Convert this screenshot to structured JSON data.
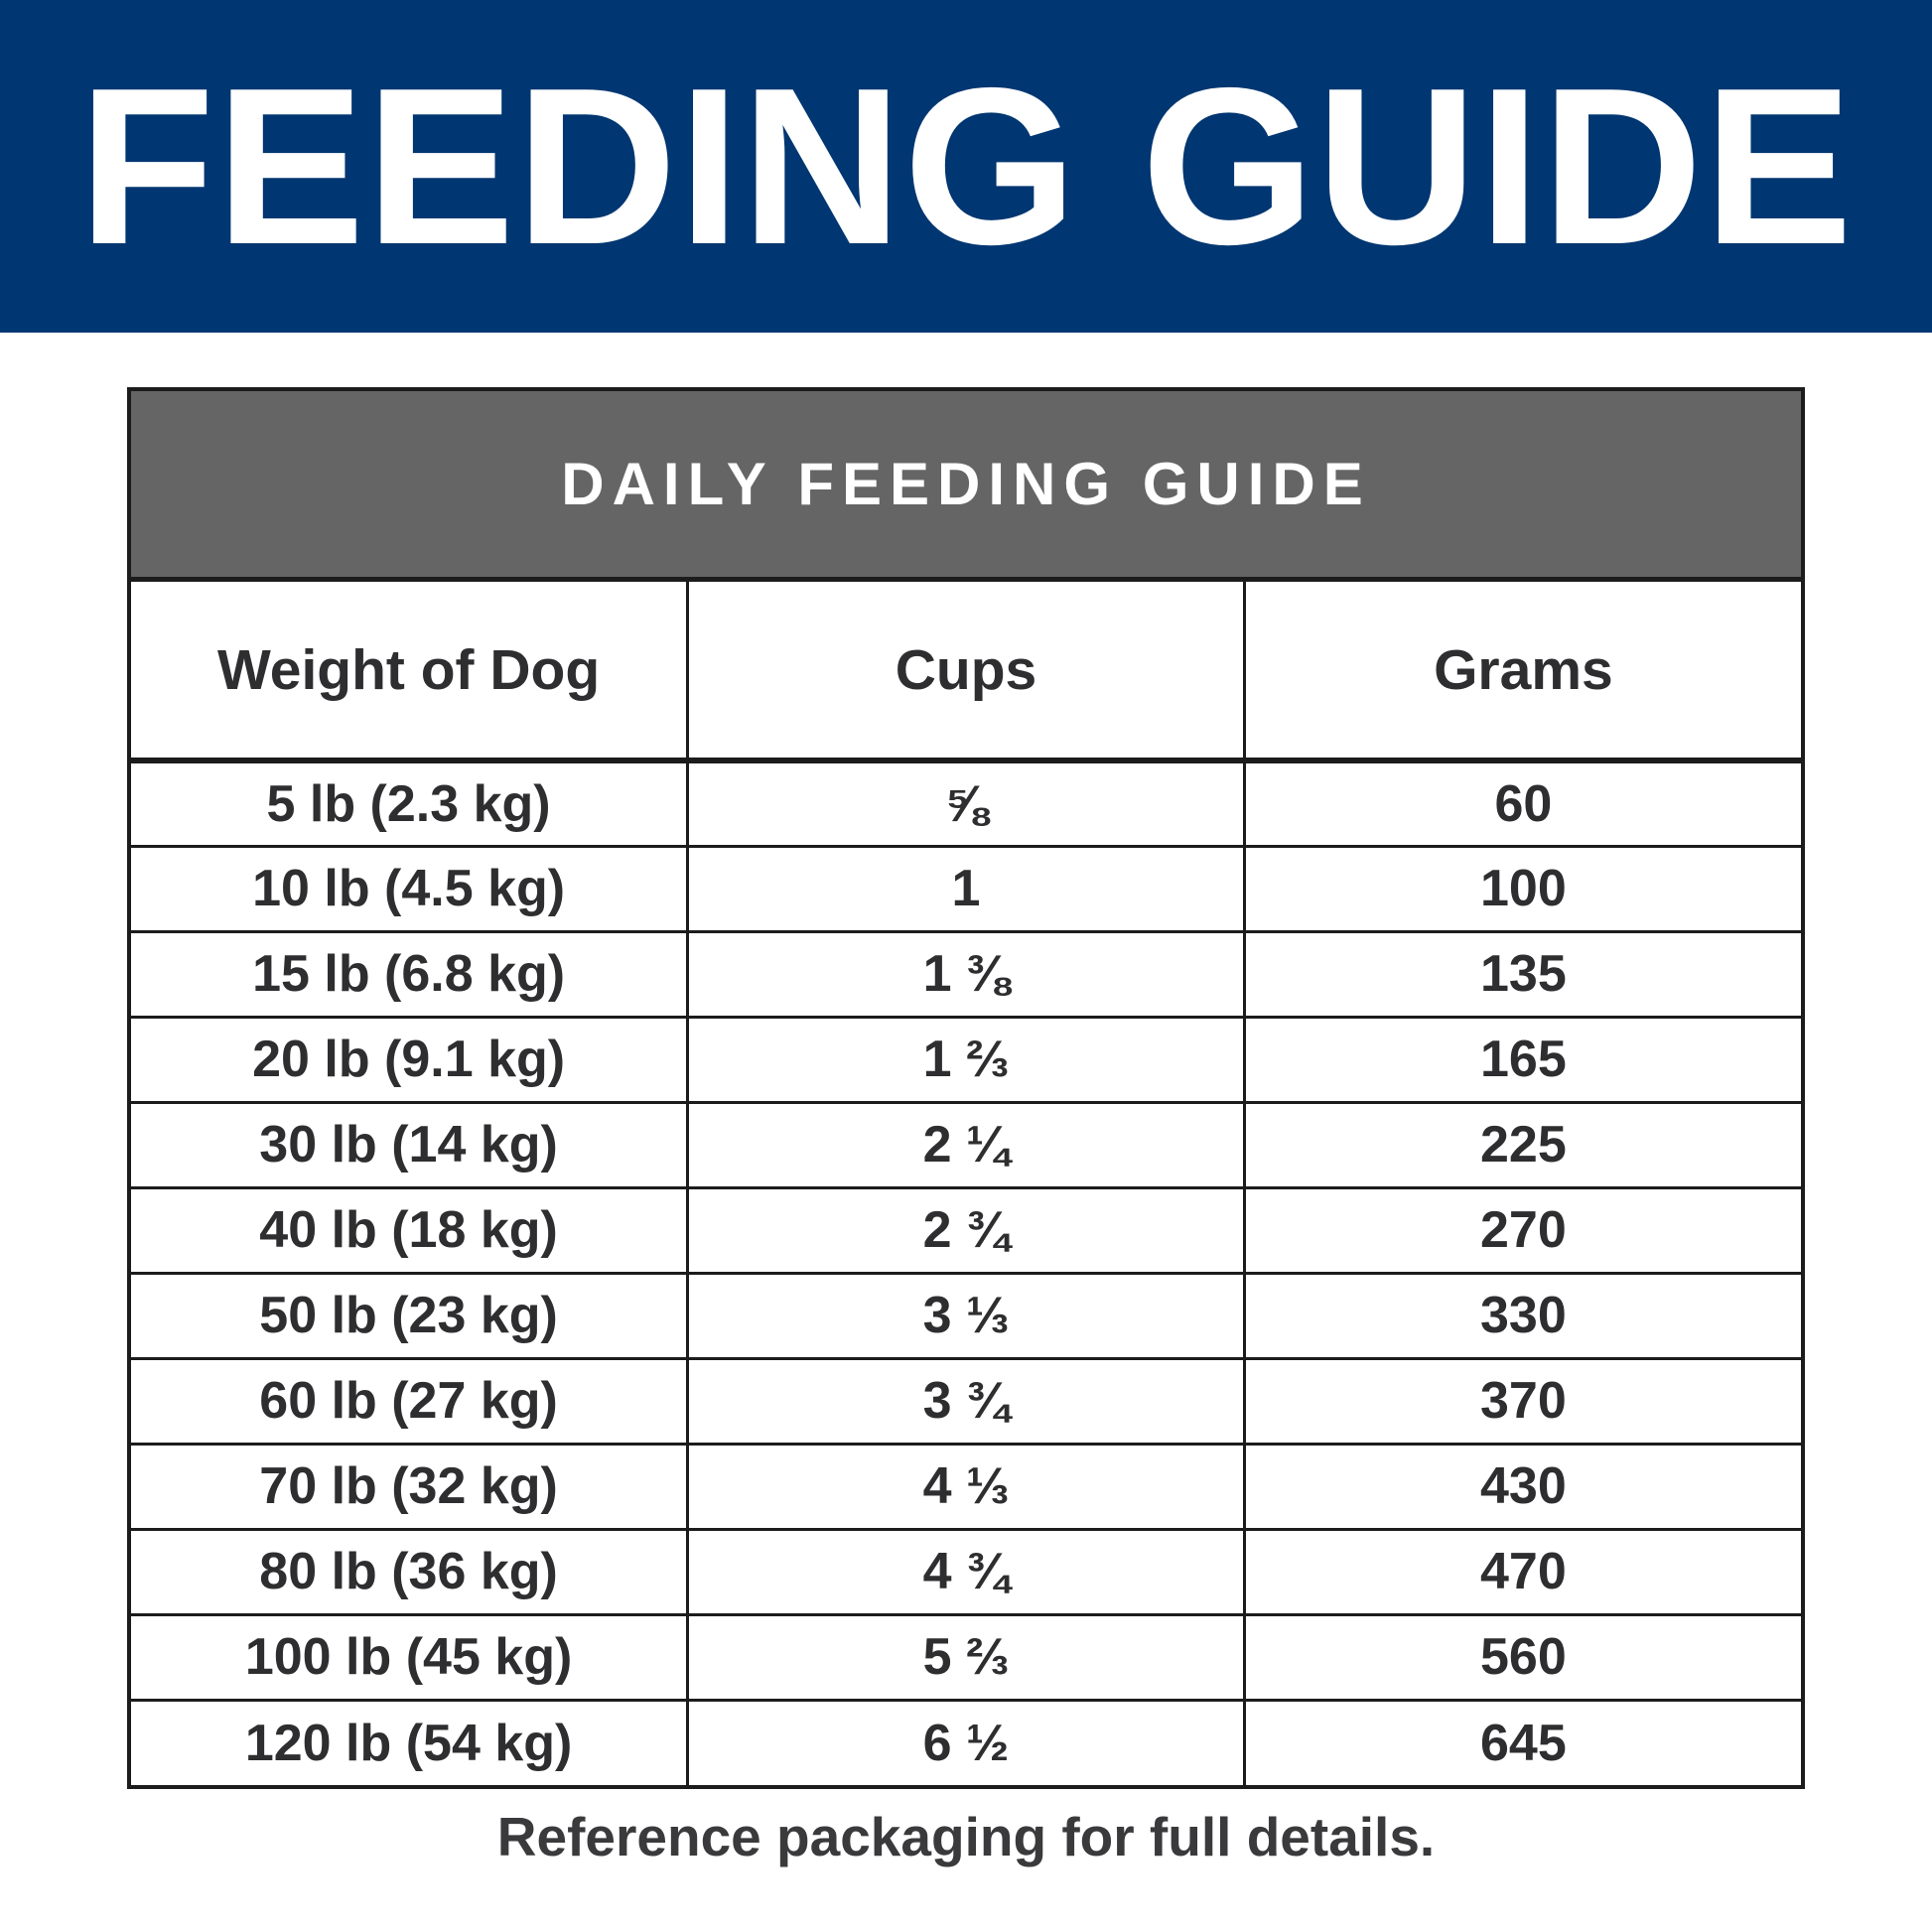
{
  "page": {
    "title": "FEEDING GUIDE",
    "section_title": "DAILY FEEDING GUIDE",
    "footer_note": "Reference packaging for full details."
  },
  "colors": {
    "banner_blue": "#003671",
    "section_header_gray": "#656565",
    "text_dark": "#2e2e30",
    "border_dark": "#1c1c1c"
  },
  "table": {
    "columns": [
      "Weight of Dog",
      "Cups",
      "Grams"
    ],
    "rows": [
      {
        "weight": "5 lb (2.3 kg)",
        "cups": "⅝",
        "grams": "60"
      },
      {
        "weight": "10 lb (4.5 kg)",
        "cups": "1",
        "grams": "100"
      },
      {
        "weight": "15 lb (6.8 kg)",
        "cups": "1 ⅜",
        "grams": "135"
      },
      {
        "weight": "20 lb (9.1 kg)",
        "cups": "1 ⅔",
        "grams": "165"
      },
      {
        "weight": "30 lb (14 kg)",
        "cups": "2 ¼",
        "grams": "225"
      },
      {
        "weight": "40 lb (18 kg)",
        "cups": "2 ¾",
        "grams": "270"
      },
      {
        "weight": "50 lb (23 kg)",
        "cups": "3 ⅓",
        "grams": "330"
      },
      {
        "weight": "60 lb (27 kg)",
        "cups": "3 ¾",
        "grams": "370"
      },
      {
        "weight": "70 lb (32 kg)",
        "cups": "4 ⅓",
        "grams": "430"
      },
      {
        "weight": "80 lb (36 kg)",
        "cups": "4 ¾",
        "grams": "470"
      },
      {
        "weight": "100 lb (45 kg)",
        "cups": "5 ⅔",
        "grams": "560"
      },
      {
        "weight": "120 lb (54 kg)",
        "cups": "6 ½",
        "grams": "645"
      }
    ]
  }
}
